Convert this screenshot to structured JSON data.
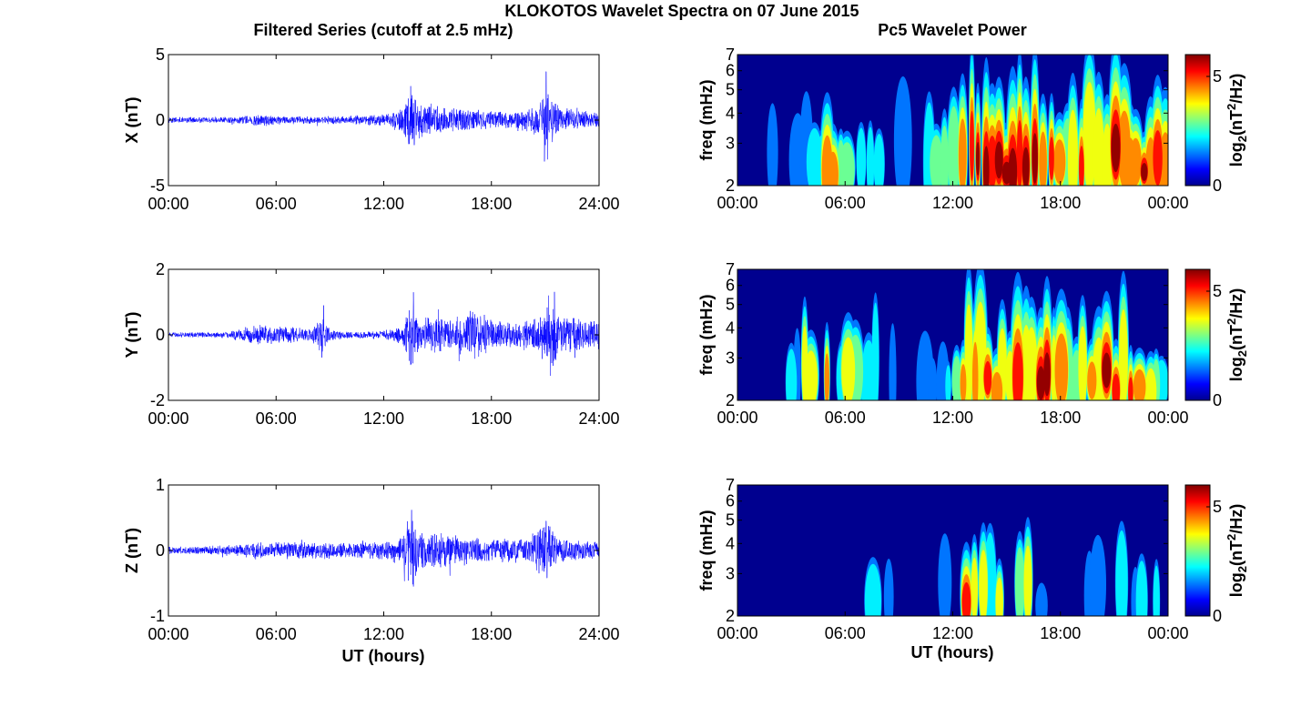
{
  "figure": {
    "suptitle": "KLOKOTOS Wavelet Spectra on 07 June 2015",
    "left_title": "Filtered Series (cutoff at 2.5 mHz)",
    "right_title": "Pc5 Wavelet Power",
    "xlabel": "UT (hours)"
  },
  "colors": {
    "trace": "#0000ff",
    "axes": "#000000",
    "colormap": "jet",
    "background_power": "#00008f"
  },
  "chart_data": [
    {
      "type": "line",
      "component": "X",
      "ylabel": "X (nT)",
      "xlim_hours": [
        0,
        24
      ],
      "x_ticks": [
        "00:00",
        "06:00",
        "12:00",
        "18:00",
        "24:00"
      ],
      "ylim": [
        -5,
        5
      ],
      "y_ticks": [
        "5",
        "0",
        "-5"
      ],
      "envelope": {
        "hours": [
          0,
          2,
          4,
          5,
          5.5,
          6,
          8,
          10,
          12,
          13,
          13.5,
          14,
          15,
          16,
          17,
          18,
          19,
          20,
          20.8,
          21,
          21.2,
          22,
          23,
          24
        ],
        "amplitude": [
          0.25,
          0.25,
          0.3,
          0.5,
          0.5,
          0.35,
          0.3,
          0.35,
          0.45,
          1.0,
          2.8,
          1.5,
          1.2,
          1.0,
          0.9,
          0.7,
          0.7,
          0.9,
          1.6,
          3.8,
          2.0,
          1.0,
          0.8,
          0.6
        ]
      },
      "peaks": [
        {
          "t": 13.5,
          "v": 2.6
        },
        {
          "t": 13.7,
          "v": -1.9
        },
        {
          "t": 21.05,
          "v": 3.7
        },
        {
          "t": 21.15,
          "v": -3.0
        }
      ]
    },
    {
      "type": "line",
      "component": "Y",
      "ylabel": "Y (nT)",
      "xlim_hours": [
        0,
        24
      ],
      "x_ticks": [
        "00:00",
        "06:00",
        "12:00",
        "18:00",
        "24:00"
      ],
      "ylim": [
        -2,
        2
      ],
      "y_ticks": [
        "2",
        "0",
        "-2"
      ],
      "envelope": {
        "hours": [
          0,
          3,
          4,
          5,
          6,
          7,
          8,
          8.6,
          9,
          10,
          11,
          12,
          13,
          13.6,
          14,
          15,
          16,
          17,
          18,
          19,
          20,
          21,
          21.5,
          22,
          23,
          24
        ],
        "amplitude": [
          0.08,
          0.1,
          0.2,
          0.35,
          0.3,
          0.25,
          0.2,
          0.8,
          0.2,
          0.12,
          0.12,
          0.15,
          0.3,
          1.2,
          0.5,
          0.6,
          0.6,
          0.9,
          0.5,
          0.4,
          0.5,
          0.8,
          1.2,
          0.6,
          0.5,
          0.5
        ]
      },
      "peaks": [
        {
          "t": 8.65,
          "v": 0.9
        },
        {
          "t": 13.65,
          "v": 1.3
        },
        {
          "t": 21.2,
          "v": 1.2
        },
        {
          "t": 21.3,
          "v": -1.25
        }
      ]
    },
    {
      "type": "line",
      "component": "Z",
      "ylabel": "Z (nT)",
      "xlim_hours": [
        0,
        24
      ],
      "x_ticks": [
        "00:00",
        "06:00",
        "12:00",
        "18:00",
        "24:00"
      ],
      "ylim": [
        -1,
        1
      ],
      "y_ticks": [
        "1",
        "0",
        "-1"
      ],
      "envelope": {
        "hours": [
          0,
          3,
          4,
          5,
          6,
          8,
          10,
          12,
          13,
          13.5,
          14,
          15,
          16,
          18,
          20,
          21,
          21.5,
          22,
          24
        ],
        "amplitude": [
          0.06,
          0.08,
          0.1,
          0.15,
          0.14,
          0.15,
          0.12,
          0.15,
          0.25,
          0.6,
          0.35,
          0.3,
          0.25,
          0.2,
          0.2,
          0.5,
          0.3,
          0.2,
          0.15
        ]
      },
      "peaks": [
        {
          "t": 13.55,
          "v": 0.62
        },
        {
          "t": 13.65,
          "v": -0.55
        },
        {
          "t": 21.05,
          "v": 0.45
        },
        {
          "t": 21.1,
          "v": -0.42
        }
      ]
    },
    {
      "type": "heatmap",
      "component": "X",
      "ylabel": "freq (mHz)",
      "xlim_hours": [
        0,
        24
      ],
      "x_ticks": [
        "00:00",
        "06:00",
        "12:00",
        "18:00",
        "00:00"
      ],
      "ylim_mhz": [
        2,
        7
      ],
      "y_scale": "log",
      "y_ticks": [
        "2",
        "3",
        "4",
        "5",
        "6",
        "7"
      ],
      "colorbar": {
        "label_base": "log",
        "label_sub": "2",
        "label_unit_pre": "(nT",
        "label_sup": "2",
        "label_unit_post": "/Hz)",
        "ticks": [
          "0",
          "5"
        ],
        "range": [
          0,
          6
        ]
      },
      "activity": {
        "hours": [
          0,
          2,
          4,
          5,
          6,
          8,
          10,
          11,
          12,
          13,
          14,
          15,
          16,
          17,
          18,
          19,
          20,
          21,
          22,
          23,
          24
        ],
        "level": [
          0.05,
          0.2,
          0.25,
          0.7,
          0.6,
          0.45,
          0.35,
          0.55,
          0.8,
          0.95,
          1.0,
          0.9,
          1.0,
          0.85,
          0.8,
          0.7,
          0.85,
          1.0,
          0.9,
          0.8,
          0.6
        ]
      }
    },
    {
      "type": "heatmap",
      "component": "Y",
      "ylabel": "freq (mHz)",
      "xlim_hours": [
        0,
        24
      ],
      "x_ticks": [
        "00:00",
        "06:00",
        "12:00",
        "18:00",
        "00:00"
      ],
      "ylim_mhz": [
        2,
        7
      ],
      "y_scale": "log",
      "y_ticks": [
        "2",
        "3",
        "4",
        "5",
        "6",
        "7"
      ],
      "colorbar": {
        "label_base": "log",
        "label_sub": "2",
        "label_unit_pre": "(nT",
        "label_sup": "2",
        "label_unit_post": "/Hz)",
        "ticks": [
          "0",
          "5"
        ],
        "range": [
          0,
          6
        ]
      },
      "activity": {
        "hours": [
          0,
          2,
          3,
          4,
          5,
          6,
          7,
          8,
          9,
          10,
          11,
          12,
          13,
          14,
          15,
          16,
          17,
          18,
          19,
          20,
          21,
          22,
          23,
          24
        ],
        "level": [
          0.05,
          0.15,
          0.3,
          0.55,
          0.7,
          0.6,
          0.45,
          0.5,
          0.15,
          0.1,
          0.3,
          0.4,
          0.85,
          0.9,
          0.75,
          0.9,
          0.95,
          0.7,
          0.55,
          0.7,
          0.95,
          0.85,
          0.6,
          0.3
        ]
      }
    },
    {
      "type": "heatmap",
      "component": "Z",
      "ylabel": "freq (mHz)",
      "xlim_hours": [
        0,
        24
      ],
      "x_ticks": [
        "00:00",
        "06:00",
        "12:00",
        "18:00",
        "00:00"
      ],
      "ylim_mhz": [
        2,
        7
      ],
      "y_scale": "log",
      "y_ticks": [
        "2",
        "3",
        "4",
        "5",
        "6",
        "7"
      ],
      "colorbar": {
        "label_base": "log",
        "label_sub": "2",
        "label_unit_pre": "(nT",
        "label_sup": "2",
        "label_unit_post": "/Hz)",
        "ticks": [
          "0",
          "5"
        ],
        "range": [
          0,
          6
        ]
      },
      "activity": {
        "hours": [
          0,
          3,
          5,
          6,
          7,
          8,
          9,
          10,
          11,
          12,
          13,
          14,
          15,
          16,
          17,
          18,
          19,
          20,
          21,
          22,
          23,
          24
        ],
        "level": [
          0.0,
          0.05,
          0.1,
          0.2,
          0.35,
          0.35,
          0.15,
          0.05,
          0.1,
          0.3,
          0.8,
          0.55,
          0.45,
          0.55,
          0.25,
          0.15,
          0.15,
          0.3,
          0.45,
          0.45,
          0.4,
          0.1
        ]
      }
    }
  ]
}
